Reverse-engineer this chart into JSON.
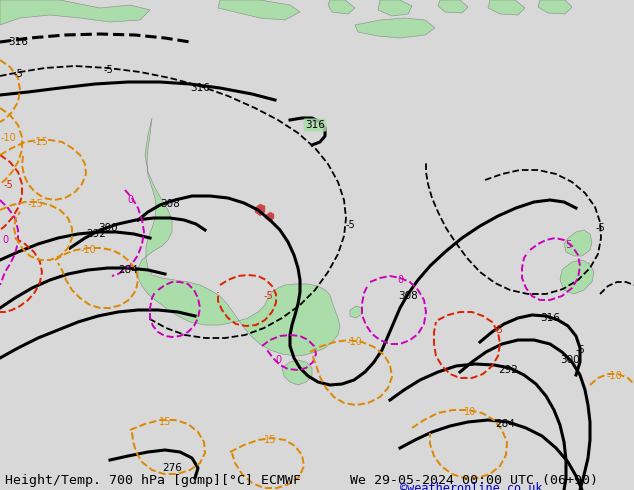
{
  "title_left": "Height/Temp. 700 hPa [gdmp][°C] ECMWF",
  "title_right": "We 29-05-2024 00:00 UTC (06+90)",
  "credit": "©weatheronline.co.uk",
  "bg_color": "#d8d8d8",
  "land_color": "#aaddaa",
  "land_edge": "#888888",
  "text_color": "#000000",
  "credit_color": "#0000cc"
}
